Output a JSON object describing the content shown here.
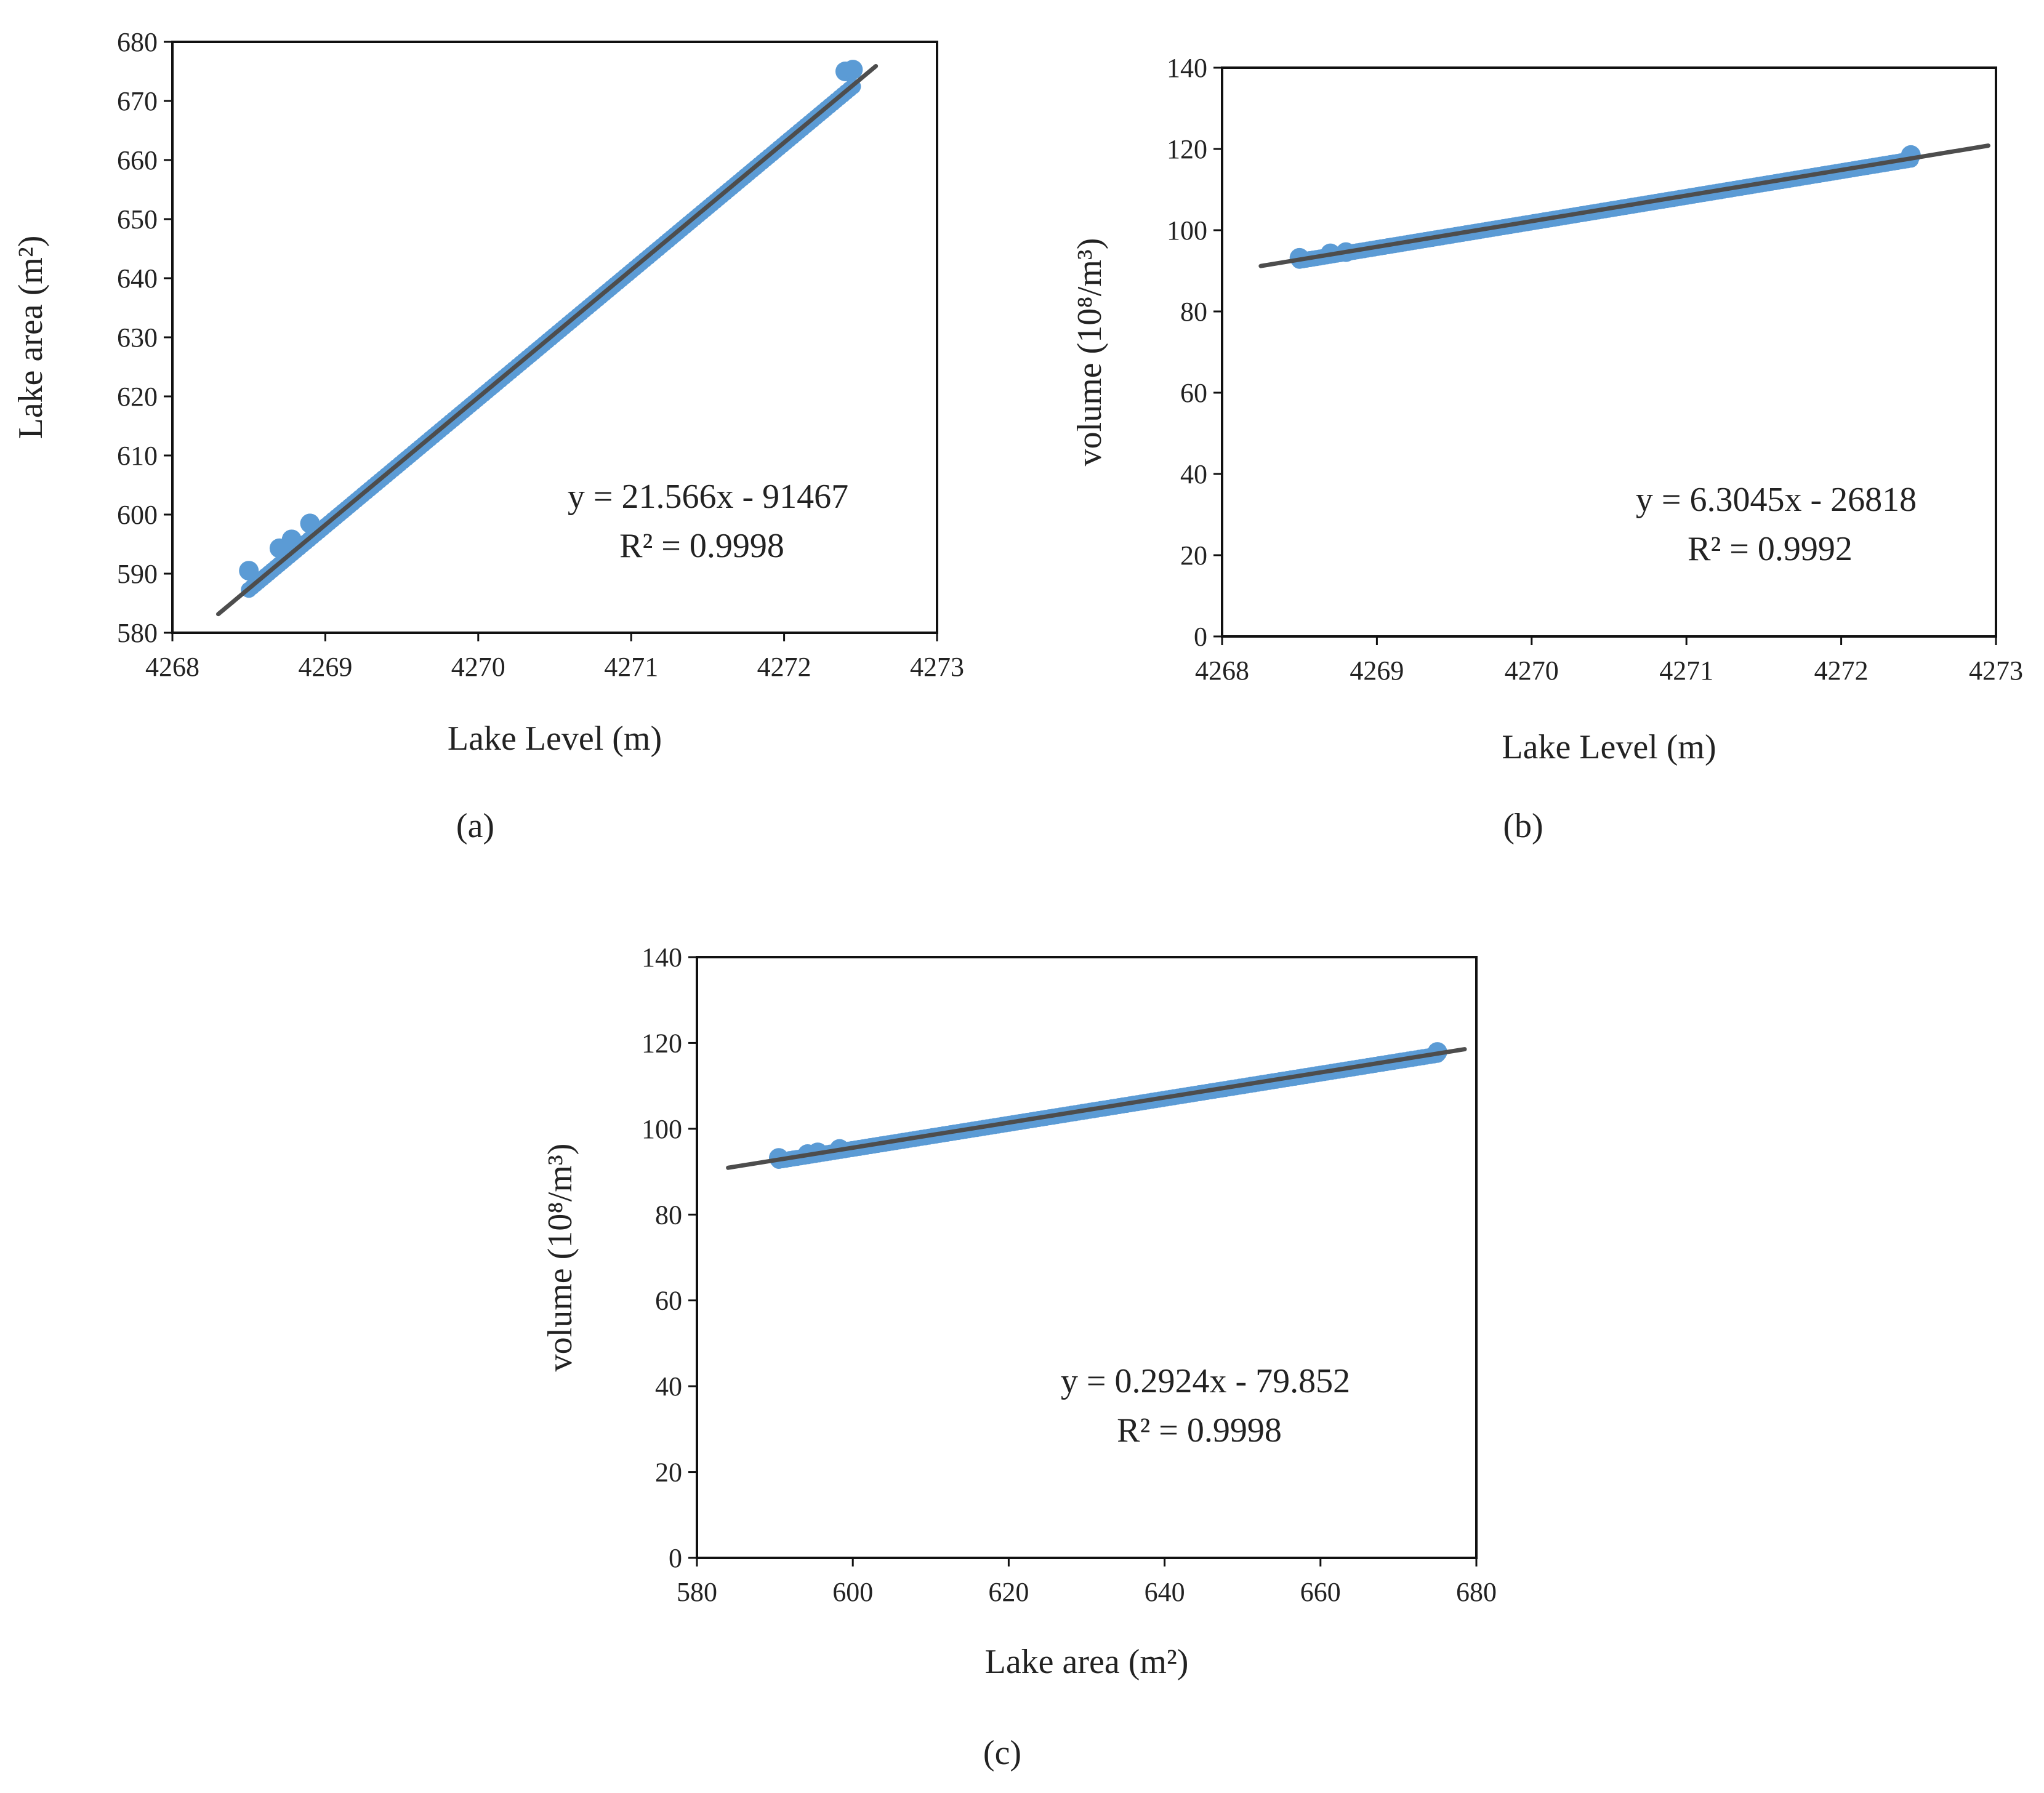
{
  "colors": {
    "points": "#5b9bd5",
    "trendline": "#4d4d4d",
    "axes": "#111111"
  },
  "chart_data": [
    {
      "id": "a",
      "type": "scatter",
      "panel_label": "(a)",
      "xlabel": "Lake Level (m)",
      "ylabel": "Lake area (m²)",
      "xlim": [
        4268,
        4273
      ],
      "ylim": [
        580,
        680
      ],
      "xticks": [
        4268,
        4269,
        4270,
        4271,
        4272,
        4273
      ],
      "yticks": [
        580,
        590,
        600,
        610,
        620,
        630,
        640,
        650,
        660,
        670,
        680
      ],
      "trendline": {
        "slope": 21.566,
        "intercept": -91467,
        "x_range": [
          4268.3,
          4272.6
        ]
      },
      "equation": "y = 21.566x - 91467",
      "r2": "R² = 0.9998",
      "points_x_range": [
        4268.5,
        4272.45
      ],
      "outlier_points": [
        [
          4268.5,
          590.5
        ],
        [
          4268.7,
          594.3
        ],
        [
          4268.78,
          595.8
        ],
        [
          4268.9,
          598.5
        ],
        [
          4272.4,
          675.0
        ],
        [
          4272.45,
          675.3
        ]
      ]
    },
    {
      "id": "b",
      "type": "scatter",
      "panel_label": "(b)",
      "xlabel": "Lake Level (m)",
      "ylabel": "volume (10⁸/m³)",
      "xlim": [
        4268,
        4273
      ],
      "ylim": [
        0,
        140
      ],
      "xticks": [
        4268,
        4269,
        4270,
        4271,
        4272,
        4273
      ],
      "yticks": [
        0,
        20,
        40,
        60,
        80,
        100,
        120,
        140
      ],
      "trendline": {
        "slope": 6.3045,
        "intercept": -26818,
        "x_range": [
          4268.25,
          4272.95
        ]
      },
      "equation": "y = 6.3045x - 26818",
      "r2": "R² = 0.9992",
      "points_x_range": [
        4268.5,
        4272.45
      ],
      "outlier_points": [
        [
          4268.5,
          93.2
        ],
        [
          4268.7,
          94.3
        ],
        [
          4268.8,
          94.6
        ],
        [
          4272.45,
          118.5
        ]
      ]
    },
    {
      "id": "c",
      "type": "scatter",
      "panel_label": "(c)",
      "xlabel": "Lake area (m²)",
      "ylabel": "volume (10⁸/m³)",
      "xlim": [
        580,
        680
      ],
      "ylim": [
        0,
        140
      ],
      "xticks": [
        580,
        600,
        620,
        640,
        660,
        680
      ],
      "yticks": [
        0,
        20,
        40,
        60,
        80,
        100,
        120,
        140
      ],
      "trendline": {
        "slope": 0.2924,
        "intercept": -79.852,
        "x_range": [
          584,
          678.5
        ]
      },
      "equation": "y = 0.2924x - 79.852",
      "r2": "R² = 0.9998",
      "points_x_range": [
        590.5,
        675
      ],
      "outlier_points": [
        [
          590.5,
          93.2
        ],
        [
          594.2,
          94.1
        ],
        [
          595.5,
          94.5
        ],
        [
          598.3,
          95.3
        ],
        [
          675,
          117.9
        ]
      ]
    }
  ]
}
